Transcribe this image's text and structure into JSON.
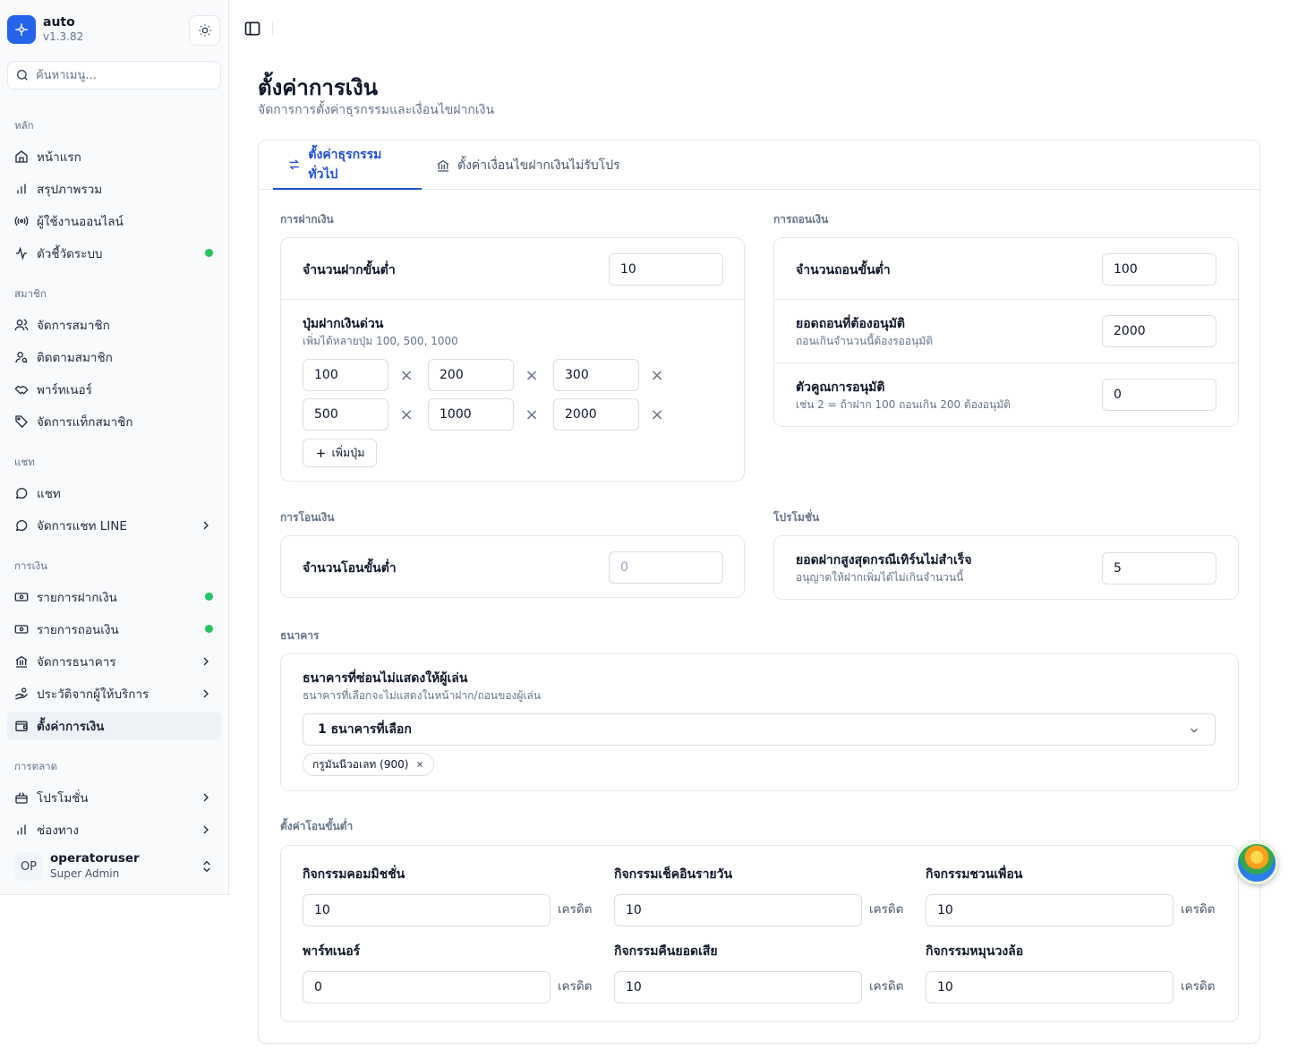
{
  "app": {
    "name": "auto",
    "version": "v1.3.82"
  },
  "search": {
    "placeholder": "ค้นหาเมนู..."
  },
  "sidebar": {
    "groups": {
      "main": "หลัก",
      "members": "สมาชิก",
      "chat": "แชท",
      "finance": "การเงิน",
      "marketing": "การตลาด"
    },
    "items": {
      "home": "หน้าแรก",
      "overview": "สรุปภาพรวม",
      "online_users": "ผู้ใช้งานออนไลน์",
      "system_metrics": "ตัวชี้วัดระบบ",
      "manage_members": "จัดการสมาชิก",
      "track_members": "ติดตามสมาชิก",
      "partners": "พาร์ทเนอร์",
      "member_tags": "จัดการแท็กสมาชิก",
      "chat": "แชท",
      "line_chat": "จัดการแชท LINE",
      "deposits": "รายการฝากเงิน",
      "withdrawals": "รายการถอนเงิน",
      "banks": "จัดการธนาคาร",
      "provider_history": "ประวัติจากผู้ให้บริการ",
      "finance_settings": "ตั้งค่าการเงิน",
      "promotions": "โปรโมชั่น",
      "channels": "ช่องทาง"
    },
    "user": {
      "initials": "OP",
      "name": "operatoruser",
      "role": "Super Admin"
    }
  },
  "page": {
    "title": "ตั้งค่าการเงิน",
    "subtitle": "จัดการการตั้งค่าธุรกรรมและเงื่อนไขฝากเงิน"
  },
  "tabs": {
    "general": "ตั้งค่าธุรกรรมทั่วไป",
    "nonpromo": "ตั้งค่าเงื่อนไขฝากเงินไม่รับโปร"
  },
  "deposit": {
    "section": "การฝากเงิน",
    "min_label": "จำนวนฝากขั้นต่ำ",
    "min_value": "10",
    "quick_label": "ปุ่มฝากเงินด่วน",
    "quick_hint": "เพิ่มได้หลายปุ่ม 100, 500, 1000",
    "quick_values": [
      "100",
      "200",
      "300",
      "500",
      "1000",
      "2000"
    ],
    "add_button": "เพิ่มปุ่ม"
  },
  "withdraw": {
    "section": "การถอนเงิน",
    "min_label": "จำนวนถอนขั้นต่ำ",
    "min_value": "100",
    "approve_label": "ยอดถอนที่ต้องอนุมัติ",
    "approve_hint": "ถอนเกินจำนวนนี้ต้องรออนุมัติ",
    "approve_value": "2000",
    "multiplier_label": "ตัวคูณการอนุมัติ",
    "multiplier_hint": "เช่น 2 = ถ้าฝาก 100 ถอนเกิน 200 ต้องอนุมัติ",
    "multiplier_value": "0"
  },
  "transfer": {
    "section": "การโอนเงิน",
    "min_label": "จำนวนโอนขั้นต่ำ",
    "min_placeholder": "0"
  },
  "promotion": {
    "section": "โปรโมชั่น",
    "max_label": "ยอดฝากสูงสุดกรณีเทิร์นไม่สำเร็จ",
    "max_hint": "อนุญาตให้ฝากเพิ่มได้ไม่เกินจำนวนนี้",
    "max_value": "5"
  },
  "bank": {
    "section": "ธนาคาร",
    "hidden_label": "ธนาคารที่ซ่อนไม่แสดงให้ผู้เล่น",
    "hidden_hint": "ธนาคารที่เลือกจะไม่แสดงในหน้าฝาก/ถอนของผู้เล่น",
    "select_value": "1 ธนาคารที่เลือก",
    "chip": "กรูมันนีวอเลท (900)"
  },
  "min_transfer": {
    "section": "ตั้งค่าโอนขั้นต่ำ",
    "unit": "เครดิต",
    "fields": [
      {
        "label": "กิจกรรมคอมมิชชั่น",
        "value": "10"
      },
      {
        "label": "กิจกรรมเช็คอินรายวัน",
        "value": "10"
      },
      {
        "label": "กิจกรรมชวนเพื่อน",
        "value": "10"
      },
      {
        "label": "พาร์ทเนอร์",
        "value": "0"
      },
      {
        "label": "กิจกรรมคืนยอดเสีย",
        "value": "10"
      },
      {
        "label": "กิจกรรมหมุนวงล้อ",
        "value": "10"
      }
    ]
  },
  "colors": {
    "accent": "#1d4ed8",
    "brand": "#2563eb",
    "status_dot": "#22c55e"
  }
}
